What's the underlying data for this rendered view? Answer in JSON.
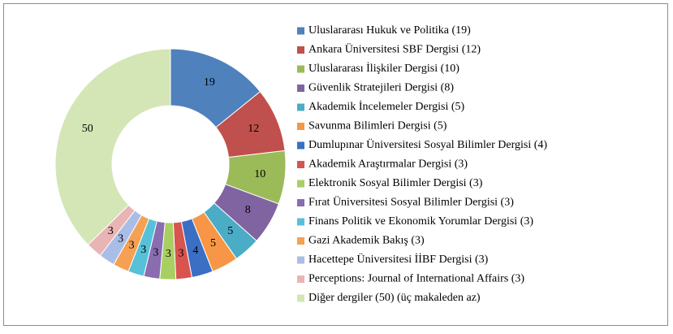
{
  "chart_data": {
    "type": "donut",
    "categories": [
      "Uluslararası Hukuk ve Politika (19)",
      "Ankara Üniversitesi SBF Dergisi (12)",
      "Uluslararası İlişkiler Dergisi (10)",
      "Güvenlik Stratejileri Dergisi (8)",
      "Akademik İncelemeler Dergisi (5)",
      "Savunma Bilimleri Dergisi (5)",
      "Dumlupınar Üniversitesi Sosyal Bilimler Dergisi (4)",
      "Akademik Araştırmalar Dergisi (3)",
      "Elektronik Sosyal Bilimler Dergisi (3)",
      "Fırat Üniversitesi Sosyal Bilimler Dergisi (3)",
      "Finans Politik ve Ekonomik Yorumlar Dergisi (3)",
      "Gazi Akademik Bakış (3)",
      "Hacettepe Üniversitesi İİBF Dergisi (3)",
      "Perceptions: Journal of International Affairs (3)",
      "Diğer dergiler (50) (üç makaleden az)"
    ],
    "values": [
      19,
      12,
      10,
      8,
      5,
      5,
      4,
      3,
      3,
      3,
      3,
      3,
      3,
      3,
      50
    ],
    "colors": [
      "#4f81bd",
      "#c0504d",
      "#9bbb59",
      "#8064a2",
      "#4bacc6",
      "#f79646",
      "#3a6fc4",
      "#d9534f",
      "#a9cf63",
      "#8a6cb0",
      "#56c1d8",
      "#f5a053",
      "#a9bde6",
      "#e8b4b4",
      "#d4e6b5"
    ],
    "legend": "right"
  }
}
